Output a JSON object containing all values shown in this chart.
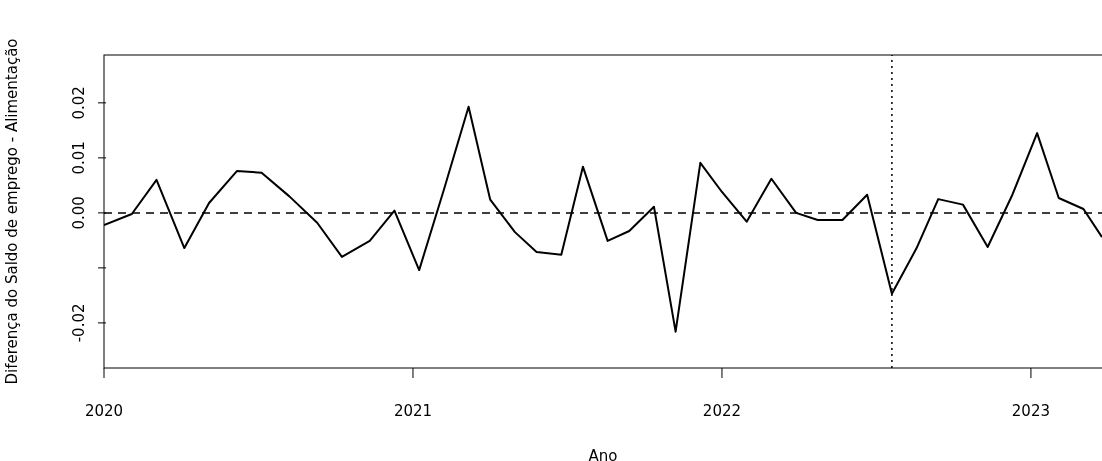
{
  "chart_data": {
    "type": "line",
    "xlabel": "Ano",
    "ylabel": "Diferença do Saldo de emprego - Alimentação",
    "x": [
      2020,
      2020.09,
      2020.17,
      2020.26,
      2020.34,
      2020.43,
      2020.51,
      2020.6,
      2020.69,
      2020.77,
      2020.86,
      2020.94,
      2021.02,
      2021.1,
      2021.18,
      2021.25,
      2021.33,
      2021.4,
      2021.48,
      2021.55,
      2021.63,
      2021.7,
      2021.78,
      2021.85,
      2021.93,
      2022.0,
      2022.08,
      2022.16,
      2022.24,
      2022.31,
      2022.39,
      2022.47,
      2022.55,
      2022.63,
      2022.7,
      2022.78,
      2022.86,
      2022.94,
      2023.02,
      2023.09,
      2023.17,
      2023.23
    ],
    "series": [
      {
        "color": "#000000",
        "values": [
          -0.0022,
          -0.0002,
          0.006,
          -0.0064,
          0.0018,
          0.0076,
          0.0073,
          0.003,
          -0.0018,
          -0.008,
          -0.0051,
          0.0004,
          -0.0104,
          0.0042,
          0.0193,
          0.0024,
          -0.0035,
          -0.0071,
          -0.0076,
          0.0084,
          -0.0051,
          -0.0033,
          0.0011,
          -0.0216,
          0.0091,
          0.0038,
          -0.0016,
          0.0062,
          0.0,
          -0.0013,
          -0.0013,
          0.0033,
          -0.0147,
          -0.0064,
          0.0025,
          0.0015,
          -0.0062,
          0.0033,
          0.0145,
          0.0027,
          0.0007,
          -0.0044
        ]
      }
    ],
    "xlim": [
      2020,
      2023.23
    ],
    "xticks": [
      2020,
      2021,
      2022,
      2023
    ],
    "ylim": [
      -0.0282,
      0.0287
    ],
    "yticks": [
      -0.02,
      {
        "value": -0.01,
        "label": null
      },
      {
        "value": 0,
        "label": "0.00"
      },
      0.01,
      0.02
    ],
    "ref_lines": [
      {
        "axis": "y",
        "value": 0,
        "line_style": "dashed",
        "color": "#000000"
      },
      {
        "axis": "x",
        "value": 2022.55,
        "line_style": "dotted",
        "color": "#000000"
      }
    ],
    "grid": false,
    "marker": "none",
    "line_style": "solid"
  }
}
